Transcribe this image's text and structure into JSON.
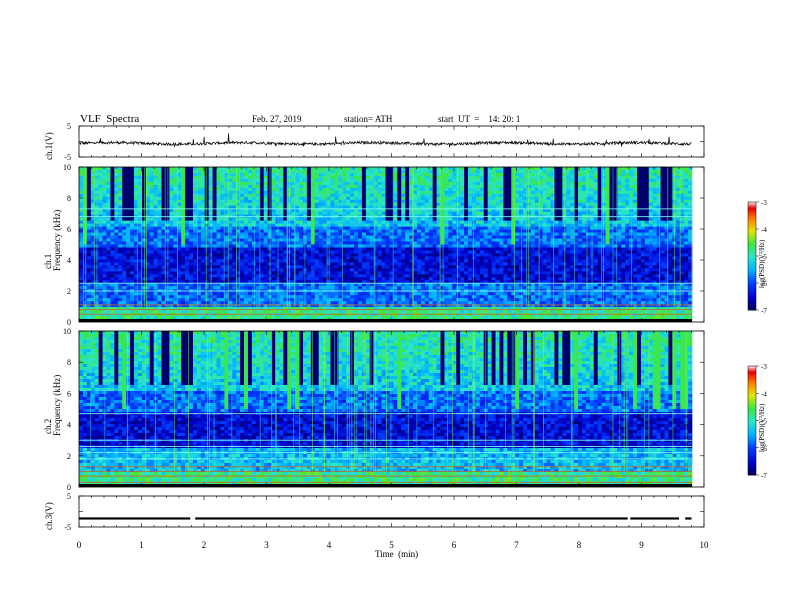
{
  "header": {
    "title": "VLF  Spectra",
    "date": "Feb. 27, 2019",
    "station": "station= ATH",
    "start": "start  UT  =    14: 20: 1"
  },
  "colors": {
    "wave": "#000000",
    "spec_low": "#000080",
    "spec_mid": "#00c8ff",
    "spec_high": "#ff0000"
  },
  "chart_data": [
    {
      "type": "line",
      "ylabel": "ch.1(V)",
      "ylim": [
        -5,
        5
      ],
      "yticks": [
        "5",
        "-5"
      ],
      "xlim": [
        0,
        10
      ],
      "description_values": "waveform near -0.5 V with sparse spikes to about +1.5 V"
    },
    {
      "type": "heatmap",
      "ylabel": "ch.1\nFrequency (kHz)",
      "ylabel_line1": "ch.1",
      "ylabel_line2": "Frequency (kHz)",
      "ylim": [
        0,
        10
      ],
      "yticks": [
        "0",
        "2",
        "4",
        "6",
        "8",
        "10"
      ],
      "xlim": [
        0,
        9.8
      ],
      "colorbar": {
        "label": "log(PSD)(V²/Hz)",
        "ticks": [
          "-3",
          "-4",
          "-5",
          "-6",
          "-7"
        ],
        "range": [
          -7,
          -3
        ]
      }
    },
    {
      "type": "heatmap",
      "ylabel": "ch.2\nFrequency (kHz)",
      "ylabel_line1": "ch.2",
      "ylabel_line2": "Frequency (kHz)",
      "ylim": [
        0,
        10
      ],
      "yticks": [
        "0",
        "2",
        "4",
        "6",
        "8",
        "10"
      ],
      "xlim": [
        0,
        9.8
      ],
      "colorbar": {
        "label": "log(PSD)(V²/Hz)",
        "ticks": [
          "-3",
          "-4",
          "-5",
          "-6",
          "-7"
        ],
        "range": [
          -7,
          -3
        ]
      }
    },
    {
      "type": "line",
      "ylabel": "ch.3(V)",
      "ylim": [
        -5,
        5
      ],
      "yticks": [
        "5",
        "-5"
      ],
      "xlim": [
        0,
        10
      ],
      "x": [
        0,
        1.8,
        1.85,
        8.8,
        8.85,
        9.6,
        9.7,
        9.8
      ],
      "y": [
        -2.2,
        -2.2,
        -1.0,
        -2.2,
        -1.5,
        -2.2,
        -1.2,
        -2.2
      ]
    }
  ],
  "xaxis": {
    "label": "Time  (min)",
    "ticks": [
      "0",
      "1",
      "2",
      "3",
      "4",
      "5",
      "6",
      "7",
      "8",
      "9",
      "10"
    ],
    "range": [
      0,
      10
    ]
  }
}
